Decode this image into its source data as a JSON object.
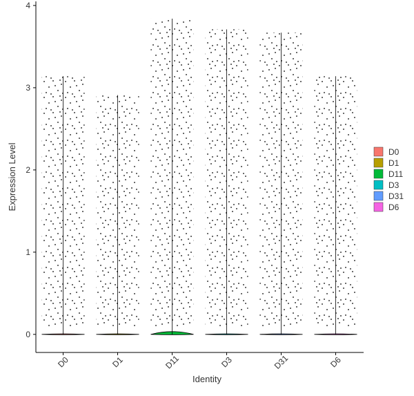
{
  "chart_data": {
    "type": "violin",
    "x_label": "Identity",
    "y_label": "Expression Level",
    "categories": [
      "D0",
      "D1",
      "D11",
      "D3",
      "D31",
      "D6"
    ],
    "series": [
      {
        "name": "D0",
        "color": "#F8766D",
        "max": 3.14
      },
      {
        "name": "D1",
        "color": "#B79F00",
        "max": 2.91
      },
      {
        "name": "D11",
        "color": "#00BA38",
        "max": 3.84
      },
      {
        "name": "D3",
        "color": "#00BFC4",
        "max": 3.71
      },
      {
        "name": "D31",
        "color": "#619CFF",
        "max": 3.67
      },
      {
        "name": "D6",
        "color": "#F564E3",
        "max": 3.14
      }
    ],
    "ylim": [
      -0.22,
      4.05
    ],
    "yticks": [
      0,
      1,
      2,
      3,
      4
    ]
  }
}
